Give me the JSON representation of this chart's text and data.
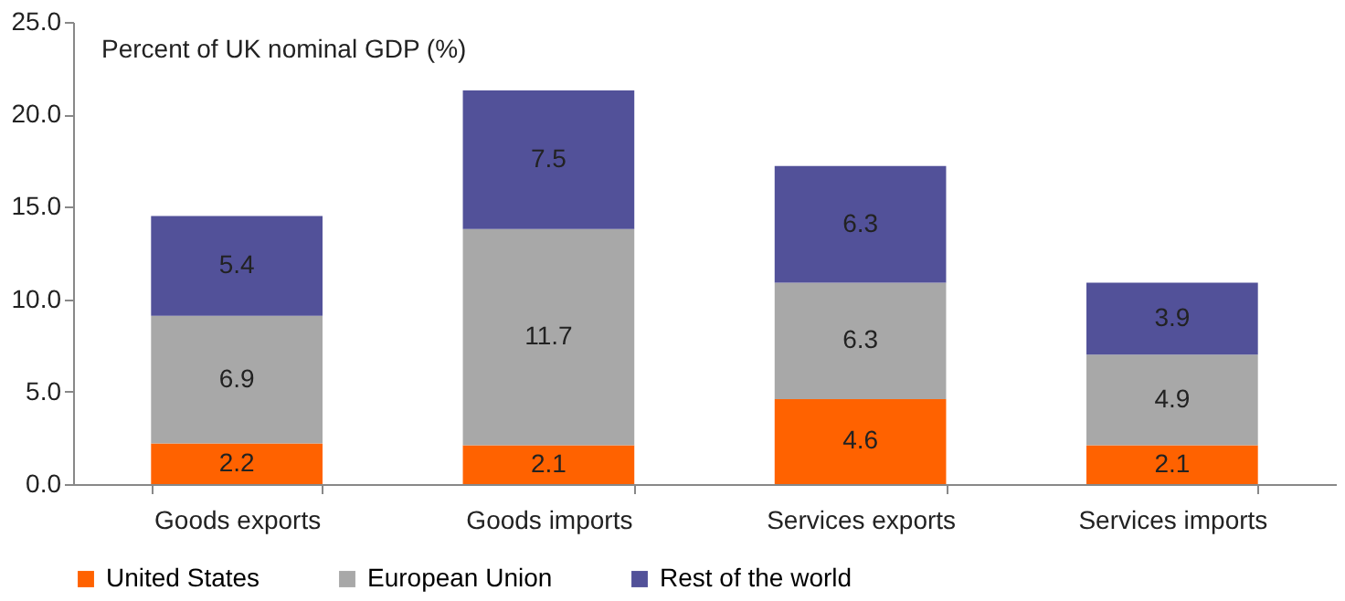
{
  "chart_data": {
    "type": "bar",
    "stacked": true,
    "ylabel": "Percent of UK nominal GDP (%)",
    "categories": [
      "Goods exports",
      "Goods imports",
      "Services exports",
      "Services imports"
    ],
    "series": [
      {
        "name": "United States",
        "color": "#ff6200",
        "values": [
          2.2,
          2.1,
          4.6,
          2.1
        ]
      },
      {
        "name": "European Union",
        "color": "#a8a8a8",
        "values": [
          6.9,
          11.7,
          6.3,
          4.9
        ]
      },
      {
        "name": "Rest of the world",
        "color": "#525199",
        "values": [
          5.4,
          7.5,
          6.3,
          3.9
        ]
      }
    ],
    "ylim": [
      0,
      25
    ],
    "yticks": [
      {
        "value": 0,
        "label": "0.0"
      },
      {
        "value": 5,
        "label": "5.0"
      },
      {
        "value": 10,
        "label": "10.0"
      },
      {
        "value": 15,
        "label": "15.0"
      },
      {
        "value": 20,
        "label": "20.0"
      },
      {
        "value": 25,
        "label": "25.0"
      }
    ],
    "data_labels": true,
    "legend": "bottom",
    "grid": false
  }
}
